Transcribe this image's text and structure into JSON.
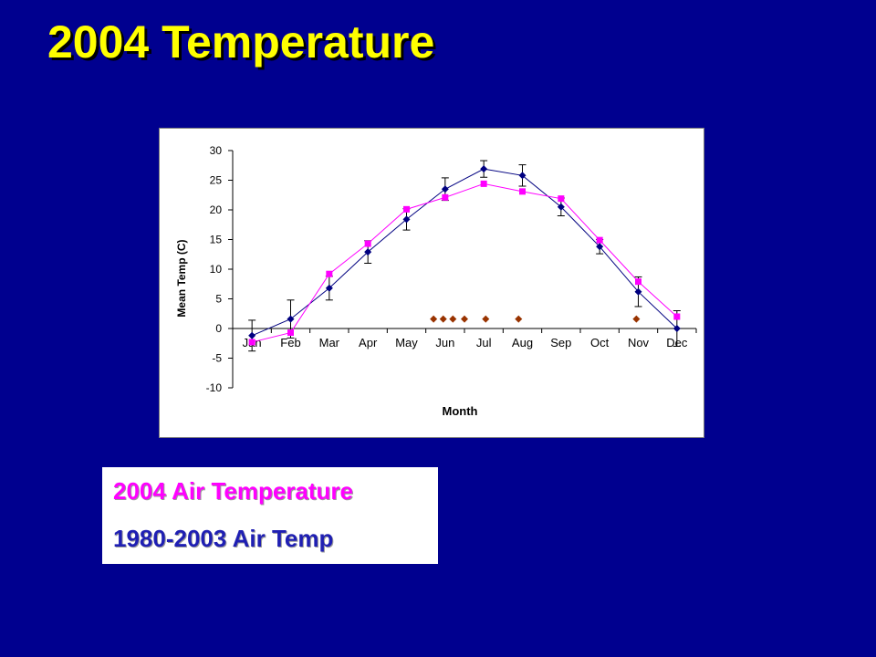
{
  "slide": {
    "title": "2004 Temperature"
  },
  "colors": {
    "background": "#00008f",
    "title": "#ffff00",
    "series_2004": "#ff00ff",
    "series_1980_2003": "#000080",
    "markers_extra": "#993300"
  },
  "legend": {
    "entries": [
      {
        "text": "2004 Air Temperature",
        "color": "#ff00ff"
      },
      {
        "text": "1980-2003 Air Temp",
        "color": "#1f1fb3"
      }
    ]
  },
  "chart_data": {
    "type": "line",
    "title": "",
    "xlabel": "Month",
    "ylabel": "Mean Temp (C)",
    "categories": [
      "Jan",
      "Feb",
      "Mar",
      "Apr",
      "May",
      "Jun",
      "Jul",
      "Aug",
      "Sep",
      "Oct",
      "Nov",
      "Dec"
    ],
    "ylim": [
      -10,
      30
    ],
    "yticks": [
      -10,
      -5,
      0,
      5,
      10,
      15,
      20,
      25,
      30
    ],
    "grid": false,
    "series": [
      {
        "color": "#ff00ff",
        "marker": "square",
        "values": [
          -2.3,
          -0.7,
          9.2,
          14.3,
          20.1,
          22.1,
          24.4,
          23.1,
          21.9,
          14.9,
          7.9,
          2.0
        ]
      },
      {
        "color": "#000080",
        "marker": "diamond",
        "values": [
          -1.2,
          1.6,
          6.8,
          12.9,
          18.4,
          23.5,
          26.9,
          25.8,
          20.5,
          13.8,
          6.2,
          0.0
        ],
        "error": [
          2.6,
          3.2,
          2.0,
          1.9,
          1.8,
          1.9,
          1.4,
          1.8,
          1.5,
          1.2,
          2.5,
          3.0
        ]
      },
      {
        "color": "#993300",
        "marker": "diamond",
        "points": [
          {
            "x": 5.2,
            "y": 1.6
          },
          {
            "x": 5.45,
            "y": 1.6
          },
          {
            "x": 5.7,
            "y": 1.6
          },
          {
            "x": 6.0,
            "y": 1.6
          },
          {
            "x": 6.55,
            "y": 1.6
          },
          {
            "x": 7.4,
            "y": 1.6
          },
          {
            "x": 10.45,
            "y": 1.6
          }
        ]
      }
    ]
  }
}
